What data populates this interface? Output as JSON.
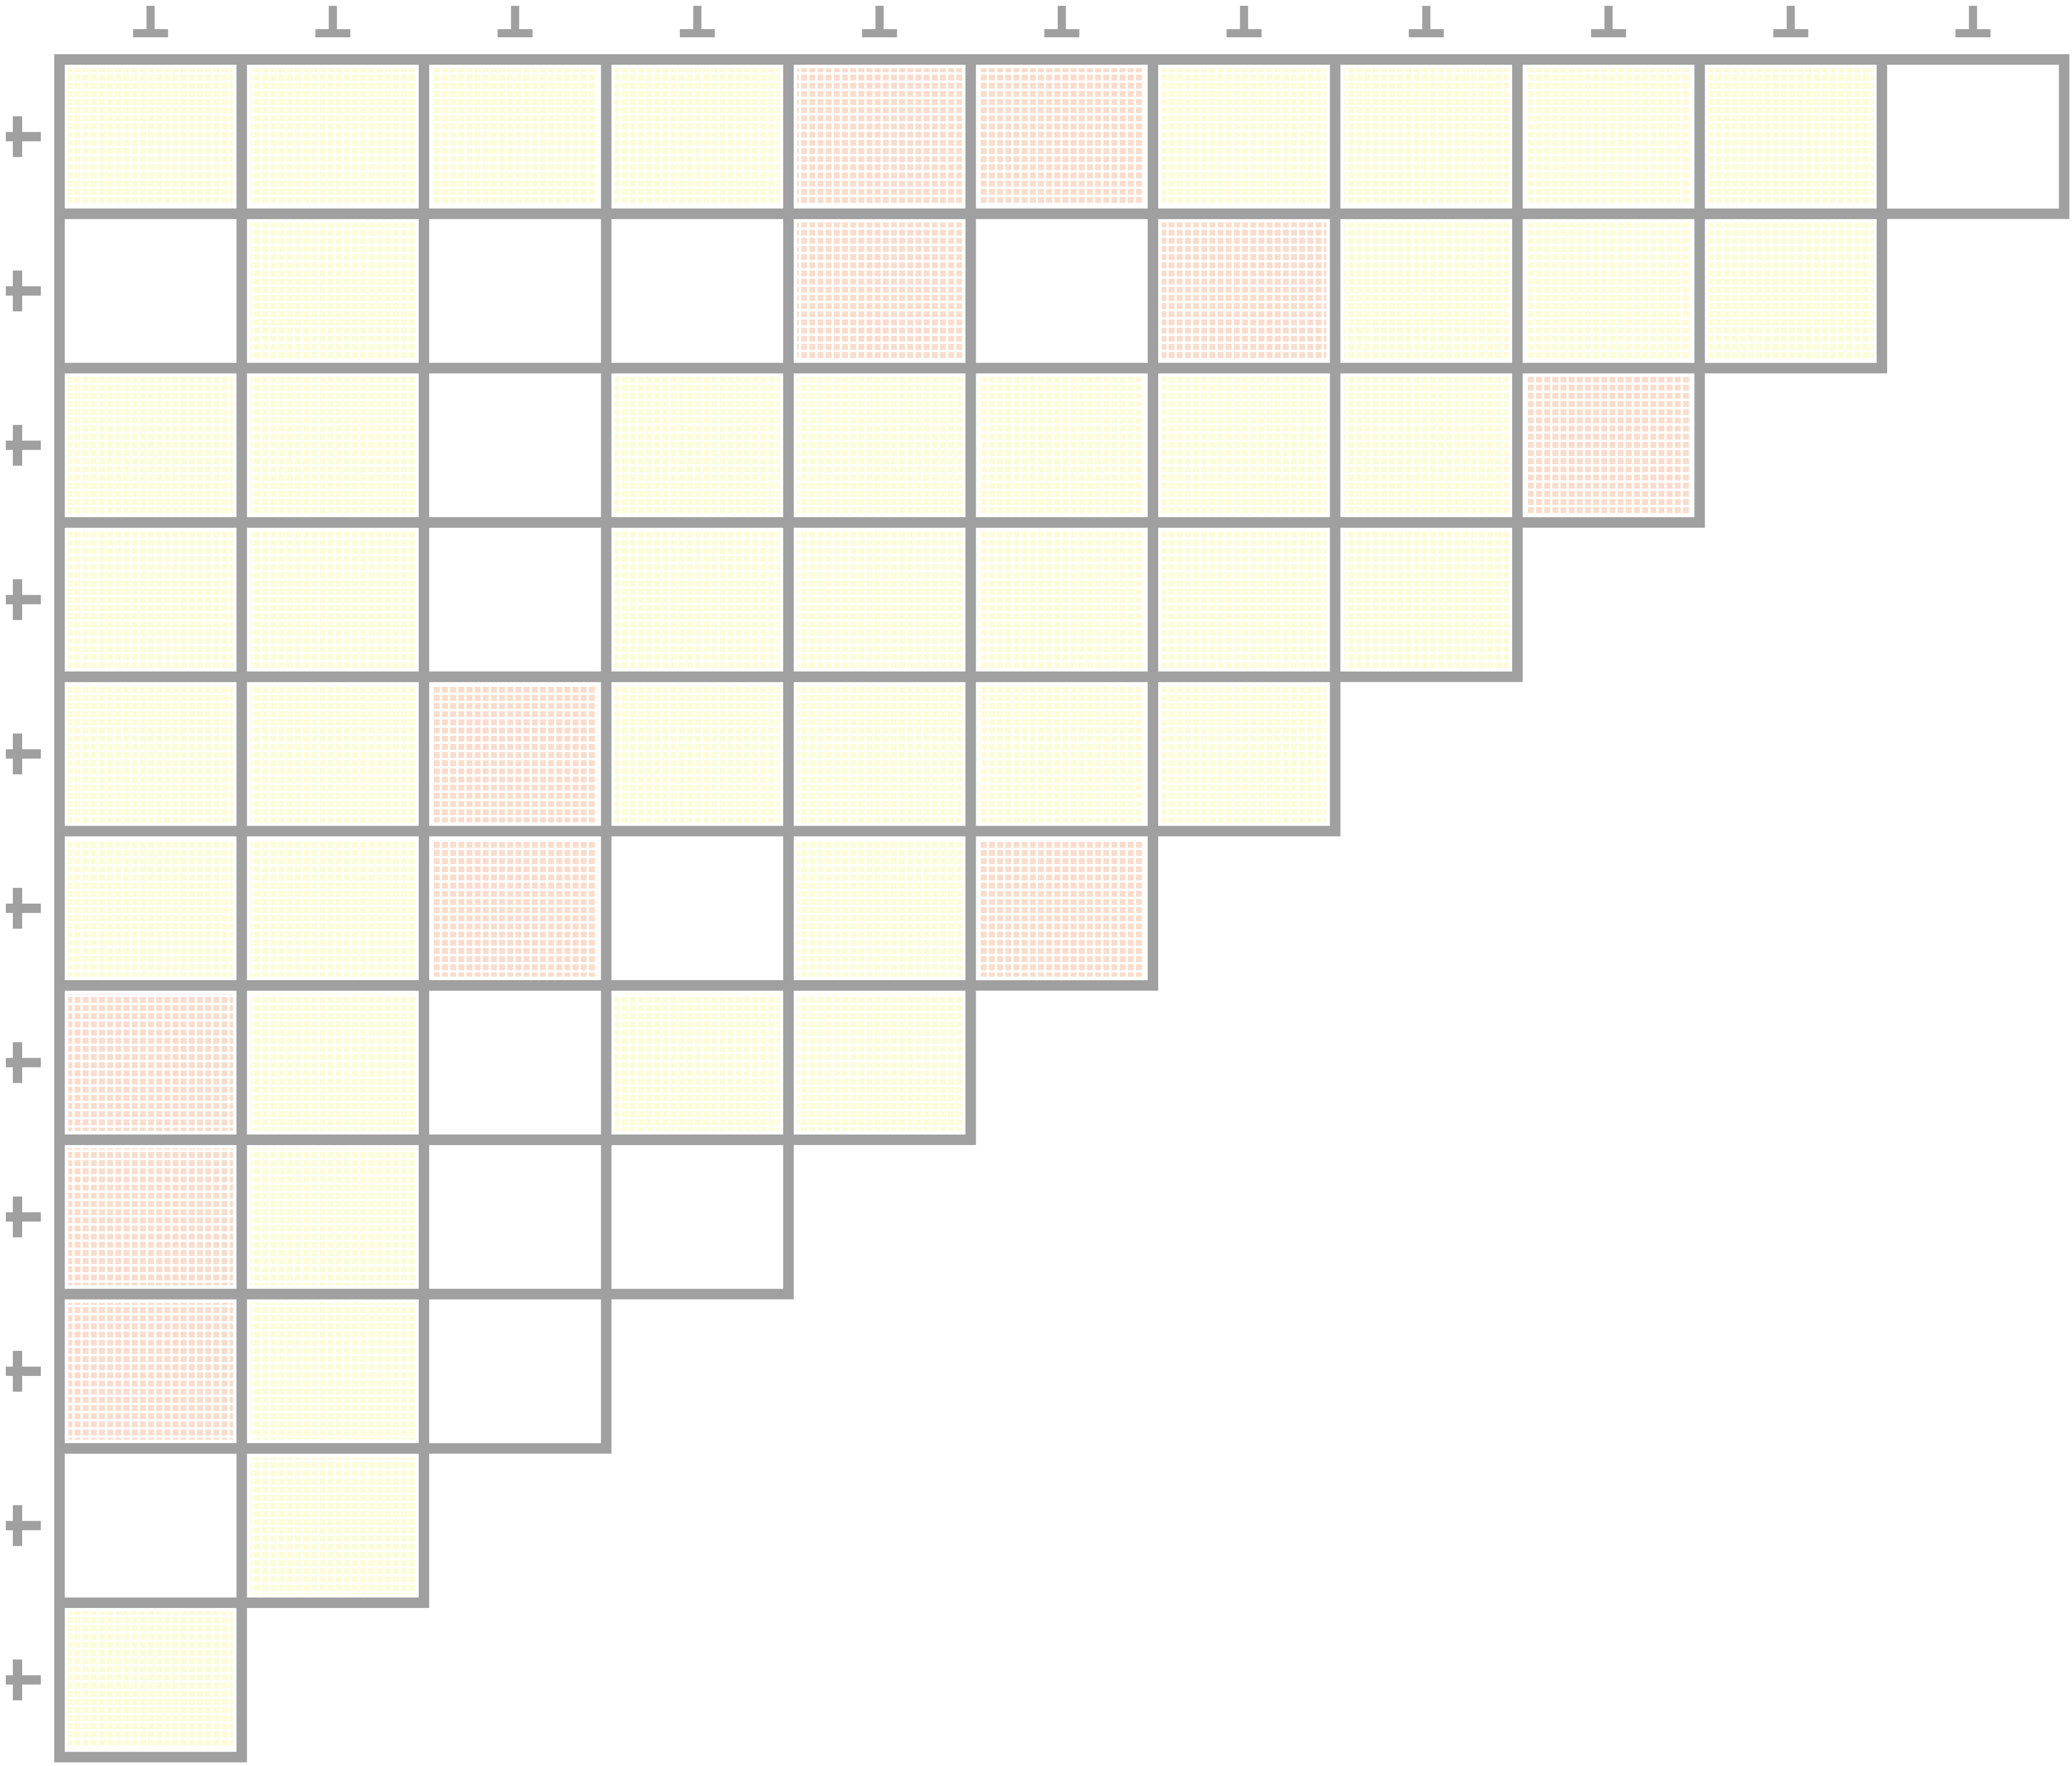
{
  "grid": {
    "rows": [
      [
        "#fdfcd4",
        "#fdfcd4",
        "#fdfcd4",
        "#fdfcd4",
        "#fbdccb",
        "#fbdccb",
        "#fdfcd4",
        "#fdfcd4",
        "#fdfcd4",
        "#fdfcd4",
        "#ffffff"
      ],
      [
        "#ffffff",
        "#fdfcd4",
        "#ffffff",
        "#ffffff",
        "#fbdccb",
        "#ffffff",
        "#fbdccb",
        "#fdfcd4",
        "#fdfcd4",
        "#fdfcd4"
      ],
      [
        "#fdfcd4",
        "#fdfcd4",
        "#ffffff",
        "#fdfcd4",
        "#fdfcd4",
        "#fdfcd4",
        "#fdfcd4",
        "#fdfcd4",
        "#fbdccb"
      ],
      [
        "#fdfcd4",
        "#fdfcd4",
        "#ffffff",
        "#fdfcd4",
        "#fdfcd4",
        "#fdfcd4",
        "#fdfcd4",
        "#fdfcd4"
      ],
      [
        "#fdfcd4",
        "#fdfcd4",
        "#fbdccb",
        "#fdfcd4",
        "#fdfcd4",
        "#fdfcd4",
        "#fdfcd4"
      ],
      [
        "#fdfcd4",
        "#fdfcd4",
        "#fbdccb",
        "#ffffff",
        "#fdfcd4",
        "#fbdccb"
      ],
      [
        "#fbdccb",
        "#fdfcd4",
        "#ffffff",
        "#fdfcd4",
        "#fdfcd4"
      ],
      [
        "#fbdccb",
        "#fdfcd4",
        "#ffffff",
        "#ffffff"
      ],
      [
        "#fbdccb",
        "#fdfcd4",
        "#ffffff"
      ],
      [
        "#ffffff",
        "#fdfcd4"
      ],
      [
        "#fdfcd4"
      ]
    ],
    "border_color": "#a0a0a0"
  }
}
